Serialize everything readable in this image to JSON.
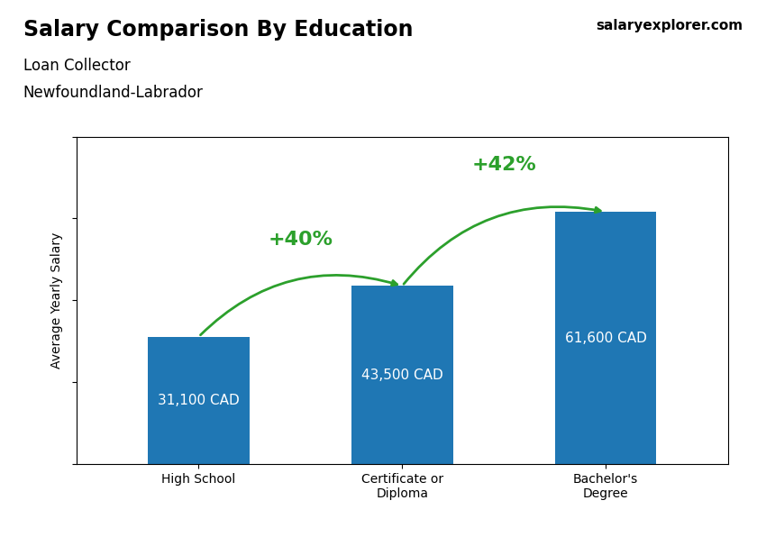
{
  "chart_data": {
    "type": "bar",
    "title": "Salary Comparison By Education",
    "subtitle": [
      "Loan Collector",
      "Newfoundland-Labrador"
    ],
    "categories": [
      "High School",
      "Certificate or\nDiploma",
      "Bachelor's\nDegree"
    ],
    "values": [
      31100,
      43500,
      61600
    ],
    "value_labels": [
      "31,100 CAD",
      "43,500 CAD",
      "61,600 CAD"
    ],
    "data_labels": true,
    "ylabel": "Average Yearly Salary",
    "ylim": [
      0,
      80000
    ],
    "yticks": [
      0,
      20000,
      40000,
      60000,
      80000
    ],
    "tick_labels": "x",
    "grid": false,
    "annotations": [
      "salaryexplorer.com",
      {
        "text": "+40%",
        "from": "High School",
        "to": "Certificate or\nDiploma"
      },
      {
        "text": "+42%",
        "from": "Certificate or\nDiploma",
        "to": "Bachelor's\nDegree"
      }
    ]
  }
}
